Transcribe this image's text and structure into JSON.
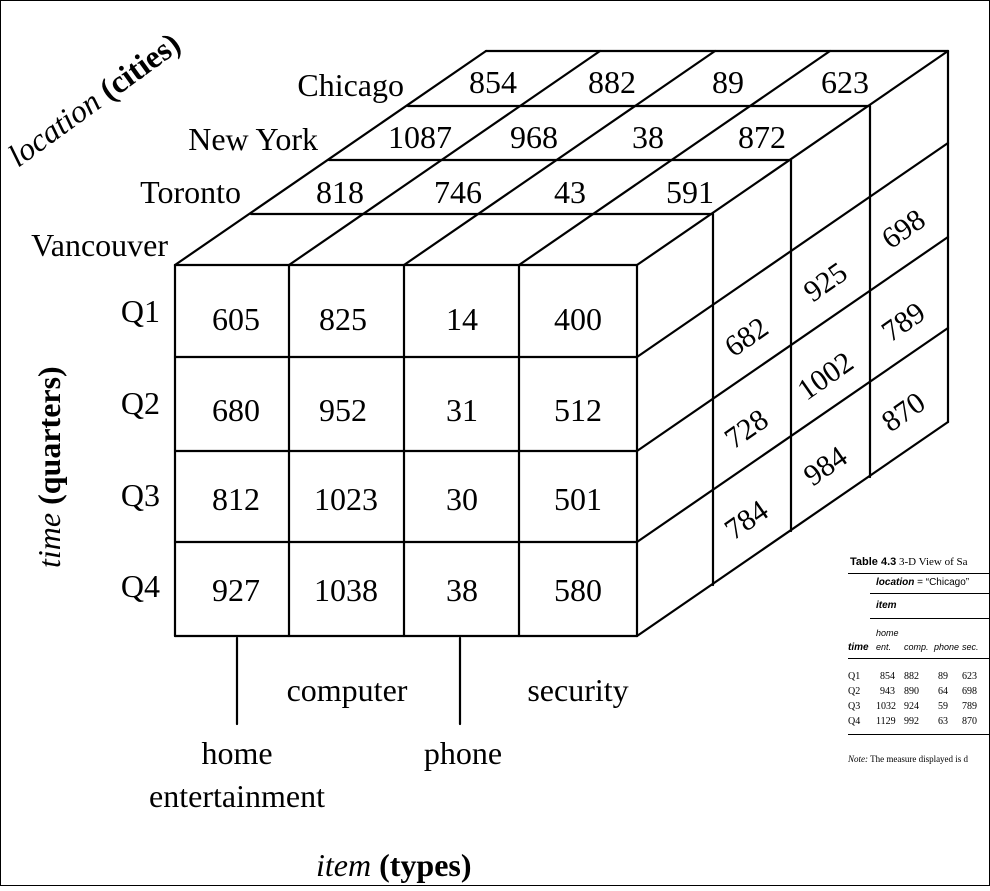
{
  "cube": {
    "axis_location": {
      "italic": "location",
      "rest": " (cities)"
    },
    "axis_time": {
      "italic": "time",
      "rest": " (quarters)"
    },
    "axis_item": {
      "italic": "item",
      "rest": " (types)"
    },
    "cities": [
      "Chicago",
      "New York",
      "Toronto",
      "Vancouver"
    ],
    "quarters": [
      "Q1",
      "Q2",
      "Q3",
      "Q4"
    ],
    "items": {
      "home_line1": "home",
      "home_line2": "entertainment",
      "computer": "computer",
      "phone": "phone",
      "security": "security"
    },
    "front_values": [
      [
        "605",
        "825",
        "14",
        "400"
      ],
      [
        "680",
        "952",
        "31",
        "512"
      ],
      [
        "812",
        "1023",
        "30",
        "501"
      ],
      [
        "927",
        "1038",
        "38",
        "580"
      ]
    ],
    "top_chicago": [
      "854",
      "882",
      "89",
      "623"
    ],
    "top_newyork": [
      "1087",
      "968",
      "38",
      "872"
    ],
    "top_toronto": [
      "818",
      "746",
      "43",
      "591"
    ],
    "side_toronto": [
      "682",
      "728",
      "784"
    ],
    "side_newyork": [
      "925",
      "1002",
      "984"
    ],
    "side_chicago": [
      "698",
      "789",
      "870"
    ]
  },
  "table": {
    "caption_bold": "Table 4.3",
    "caption_rest": " 3-D View of Sa",
    "location_label": "location",
    "location_value": " = “Chicago”",
    "item_label": "item",
    "home_label": "home",
    "time_label": "time",
    "col_headers": [
      "ent.",
      "comp.",
      "phone",
      "sec."
    ],
    "rows": [
      {
        "q": "Q1",
        "v": [
          "854",
          "882",
          "89",
          "623"
        ]
      },
      {
        "q": "Q2",
        "v": [
          "943",
          "890",
          "64",
          "698"
        ]
      },
      {
        "q": "Q3",
        "v": [
          "1032",
          "924",
          "59",
          "789"
        ]
      },
      {
        "q": "Q4",
        "v": [
          "1129",
          "992",
          "63",
          "870"
        ]
      }
    ],
    "note_label": "Note:",
    "note_text": " The measure displayed is d"
  }
}
